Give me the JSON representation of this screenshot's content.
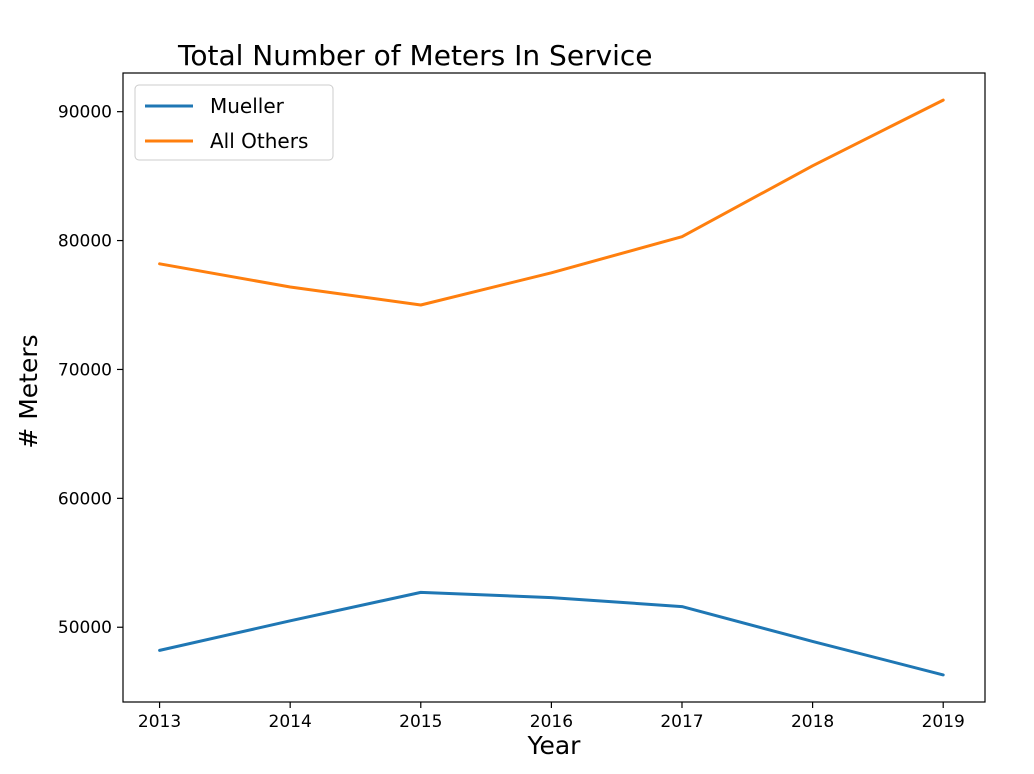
{
  "chart_data": {
    "type": "line",
    "title": "Total Number of Meters In Service",
    "xlabel": "Year",
    "ylabel": "# Meters",
    "x": [
      2013,
      2014,
      2015,
      2016,
      2017,
      2018,
      2019
    ],
    "xlim": [
      2012.72,
      2019.32
    ],
    "ylim": [
      44200,
      93000
    ],
    "xticks": [
      "2013",
      "2014",
      "2015",
      "2016",
      "2017",
      "2018",
      "2019"
    ],
    "yticks": [
      50000,
      60000,
      70000,
      80000,
      90000
    ],
    "ytick_labels": [
      "50000",
      "60000",
      "70000",
      "80000",
      "90000"
    ],
    "grid": false,
    "legend_position": "top-left",
    "series": [
      {
        "name": "Mueller",
        "color": "#1f77b4",
        "values": [
          48200,
          50500,
          52700,
          52300,
          51600,
          48900,
          46300
        ]
      },
      {
        "name": "All Others",
        "color": "#ff7f0e",
        "values": [
          78200,
          76400,
          75000,
          77500,
          80300,
          85800,
          90900
        ]
      }
    ]
  }
}
